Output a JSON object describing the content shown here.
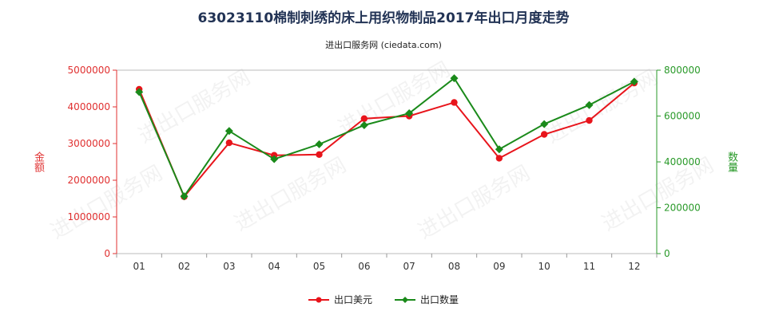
{
  "title": "63023110棉制刺绣的床上用织物制品2017年出口月度走势",
  "subtitle": "进出口服务网 (ciedata.com)",
  "chart_data": {
    "type": "line",
    "categories": [
      "01",
      "02",
      "03",
      "04",
      "05",
      "06",
      "07",
      "08",
      "09",
      "10",
      "11",
      "12"
    ],
    "series": [
      {
        "name": "出口美元",
        "axis": "left",
        "color": "#e8141b",
        "values": [
          4480000,
          1550000,
          3020000,
          2680000,
          2700000,
          3680000,
          3750000,
          4120000,
          2600000,
          3250000,
          3630000,
          4650000
        ]
      },
      {
        "name": "出口数量",
        "axis": "right",
        "color": "#1a8a1a",
        "values": [
          705000,
          250000,
          535000,
          412000,
          477000,
          560000,
          612000,
          765000,
          455000,
          565000,
          648000,
          750000
        ]
      }
    ],
    "y_left": {
      "label": "金额",
      "min": 0,
      "max": 5000000,
      "ticks": [
        "0",
        "1000000",
        "2000000",
        "3000000",
        "4000000",
        "5000000"
      ]
    },
    "y_right": {
      "label": "数量",
      "min": 0,
      "max": 800000,
      "ticks": [
        "0",
        "200000",
        "400000",
        "600000",
        "800000"
      ]
    },
    "legend_position": "bottom-center",
    "watermark": "进出口服务网"
  }
}
